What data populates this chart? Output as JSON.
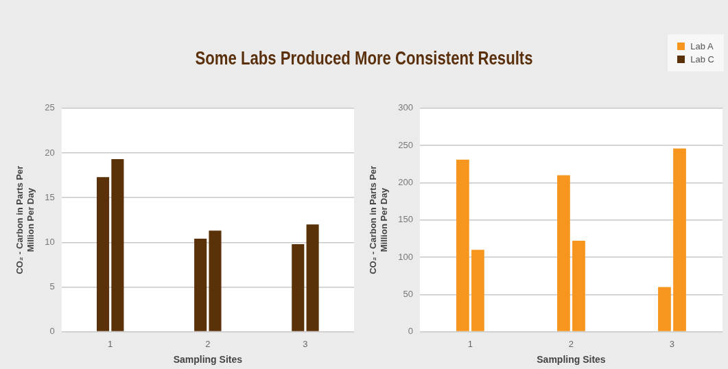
{
  "chart_data": [
    {
      "type": "bar",
      "title": "Some Labs Produced More Consistent Results",
      "categories": [
        "1",
        "2",
        "3"
      ],
      "xlabel": "Sampling Sites",
      "ylabel": "CO₂ - Carbon in Parts Per Million Per Day",
      "ylim": [
        0,
        25
      ],
      "yticks": [
        0,
        5,
        10,
        15,
        20,
        25
      ],
      "grid": "y",
      "legend": "top right",
      "series": [
        {
          "name": "Lab C",
          "color": "#5a3108",
          "values": [
            17.3,
            10.4,
            9.8
          ]
        },
        {
          "color": "#5a3108",
          "values": [
            19.3,
            11.3,
            12.0
          ]
        }
      ]
    },
    {
      "type": "bar",
      "categories": [
        "1",
        "2",
        "3"
      ],
      "xlabel": "Sampling Sites",
      "ylabel": "CO₂ - Carbon in Parts Per Million Per Day",
      "ylim": [
        0,
        300
      ],
      "yticks": [
        0,
        50,
        100,
        150,
        200,
        250,
        300
      ],
      "grid": "y",
      "legend": "top right",
      "series": [
        {
          "name": "Lab A",
          "color": "#f6961e",
          "values": [
            231,
            210,
            60
          ]
        },
        {
          "color": "#f6961e",
          "values": [
            110,
            122,
            246
          ]
        }
      ]
    }
  ]
}
